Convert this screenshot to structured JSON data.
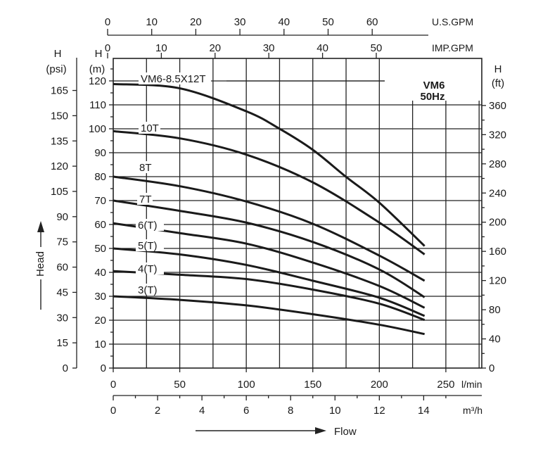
{
  "chart_data": {
    "type": "line",
    "title": "VM6",
    "subtitle": "50Hz",
    "xlabel": "Flow",
    "ylabel": "Head",
    "x_unit": "l/min",
    "xlim": [
      0,
      277
    ],
    "ylim": [
      0,
      129.4
    ],
    "grid": true,
    "x_ticks": [
      0,
      50,
      100,
      150,
      200,
      250
    ],
    "y_ticks_m": [
      0,
      10,
      20,
      30,
      40,
      50,
      60,
      70,
      80,
      90,
      100,
      110,
      120
    ],
    "y_axis_m_label": [
      "H",
      "(m)"
    ],
    "y_axis_psi_label": [
      "H",
      "(psi)"
    ],
    "y_ticks_psi": [
      0,
      15,
      30,
      45,
      60,
      75,
      90,
      105,
      120,
      135,
      150,
      165
    ],
    "y_axis_ft_label": [
      "H",
      "(ft)"
    ],
    "y_ticks_ft": [
      0,
      40,
      80,
      120,
      160,
      200,
      240,
      280,
      320,
      360
    ],
    "x_axis_m3h": {
      "unit": "m³/h",
      "ticks": [
        0,
        2,
        4,
        6,
        8,
        10,
        12,
        14
      ]
    },
    "x_axis_usgpm": {
      "unit": "U.S.GPM",
      "ticks": [
        0,
        10,
        20,
        30,
        40,
        50,
        60
      ]
    },
    "x_axis_impgpm": {
      "unit": "IMP.GPM",
      "ticks": [
        0,
        10,
        20,
        30,
        40,
        50
      ]
    },
    "series": [
      {
        "name": "VM6-8.5X12T",
        "x": [
          0,
          50,
          100,
          125,
          150,
          175,
          200,
          234
        ],
        "y": [
          118.7,
          116.9,
          107.3,
          100,
          91.2,
          79.9,
          69.1,
          51
        ]
      },
      {
        "name": "10T",
        "x": [
          0,
          50,
          100,
          150,
          200,
          234
        ],
        "y": [
          99,
          96,
          89.2,
          77.6,
          60.8,
          47.5
        ]
      },
      {
        "name": "8T",
        "x": [
          0,
          50,
          100,
          150,
          200,
          234
        ],
        "y": [
          80,
          76,
          69.6,
          60.3,
          47,
          36.5
        ]
      },
      {
        "name": "7T",
        "x": [
          0,
          50,
          100,
          150,
          200,
          234
        ],
        "y": [
          70,
          65.7,
          60.8,
          52.7,
          41.2,
          29.6
        ]
      },
      {
        "name": "6(T)",
        "x": [
          0,
          50,
          100,
          150,
          200,
          234
        ],
        "y": [
          60.5,
          56.4,
          52,
          44.1,
          34.3,
          25.2
        ]
      },
      {
        "name": "5(T)",
        "x": [
          0,
          50,
          100,
          150,
          200,
          234
        ],
        "y": [
          50,
          47.5,
          43.1,
          36.5,
          29.4,
          21.8
        ]
      },
      {
        "name": "4(T)",
        "x": [
          0,
          50,
          100,
          150,
          200,
          234
        ],
        "y": [
          40.5,
          39,
          37.2,
          32.8,
          26.9,
          20.1
        ]
      },
      {
        "name": "3(T)",
        "x": [
          0,
          50,
          100,
          150,
          200,
          234
        ],
        "y": [
          30,
          28.5,
          26.2,
          22.5,
          18.1,
          14.2
        ]
      }
    ]
  }
}
